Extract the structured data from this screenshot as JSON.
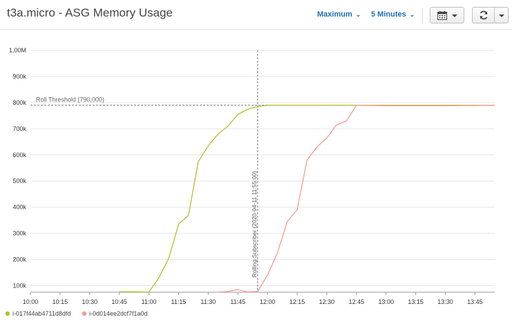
{
  "header": {
    "title": "t3a.micro - ASG Memory Usage",
    "stat_dropdown": "Maximum",
    "period_dropdown": "5 Minutes",
    "icons": [
      "calendar-icon",
      "refresh-icon",
      "caret-down-icon"
    ]
  },
  "colors": {
    "series1": "#b5be2f",
    "series2": "#f59a96",
    "axis": "#333333",
    "grid": "#e6e6e6"
  },
  "chart_data": {
    "type": "line",
    "title": "",
    "xlabel": "",
    "ylabel": "",
    "ylim": [
      75000,
      1000000
    ],
    "xlim": [
      "10:00",
      "13:55"
    ],
    "y_ticks": [
      100000,
      200000,
      300000,
      400000,
      500000,
      600000,
      700000,
      800000,
      900000,
      1000000
    ],
    "y_tick_labels": [
      "100k",
      "200k",
      "300k",
      "400k",
      "500k",
      "600k",
      "700k",
      "800k",
      "900k",
      "1.00M"
    ],
    "x_tick_labels": [
      "10:00",
      "10:15",
      "10:30",
      "10:45",
      "11:00",
      "11:15",
      "11:30",
      "11:45",
      "12:00",
      "12:15",
      "12:30",
      "12:45",
      "13:00",
      "13:15",
      "13:30",
      "13:45"
    ],
    "annotations": {
      "threshold": {
        "value": 790000,
        "label": "Roll Threshold (790,000)"
      },
      "vertical": {
        "x": "11:55",
        "label": "Rolling Subscriber (2020-04-11 11:55:00)"
      }
    },
    "legend_position": "bottom",
    "series": [
      {
        "name": "i-017f44ab4711d8dfd",
        "color": "#b5be2f",
        "points": [
          [
            "10:45",
            77000
          ],
          [
            "11:00",
            76000
          ],
          [
            "11:05",
            130000
          ],
          [
            "11:10",
            205000
          ],
          [
            "11:15",
            335000
          ],
          [
            "11:20",
            370000
          ],
          [
            "11:25",
            575000
          ],
          [
            "11:30",
            635000
          ],
          [
            "11:35",
            680000
          ],
          [
            "11:40",
            710000
          ],
          [
            "11:45",
            755000
          ],
          [
            "11:50",
            775000
          ],
          [
            "11:55",
            785000
          ],
          [
            "12:00",
            790000
          ],
          [
            "12:30",
            790000
          ],
          [
            "13:00",
            790000
          ],
          [
            "13:30",
            790000
          ],
          [
            "13:55",
            790000
          ]
        ]
      },
      {
        "name": "i-0d014ee2dcf7f1a0d",
        "color": "#f59a96",
        "points": [
          [
            "11:35",
            76000
          ],
          [
            "11:40",
            78000
          ],
          [
            "11:45",
            85000
          ],
          [
            "11:50",
            76000
          ],
          [
            "11:55",
            78000
          ],
          [
            "12:00",
            140000
          ],
          [
            "12:05",
            225000
          ],
          [
            "12:10",
            345000
          ],
          [
            "12:15",
            390000
          ],
          [
            "12:20",
            580000
          ],
          [
            "12:25",
            630000
          ],
          [
            "12:30",
            665000
          ],
          [
            "12:35",
            715000
          ],
          [
            "12:40",
            730000
          ],
          [
            "12:45",
            790000
          ],
          [
            "13:00",
            788000
          ],
          [
            "13:30",
            788000
          ],
          [
            "13:55",
            790000
          ]
        ]
      }
    ]
  }
}
